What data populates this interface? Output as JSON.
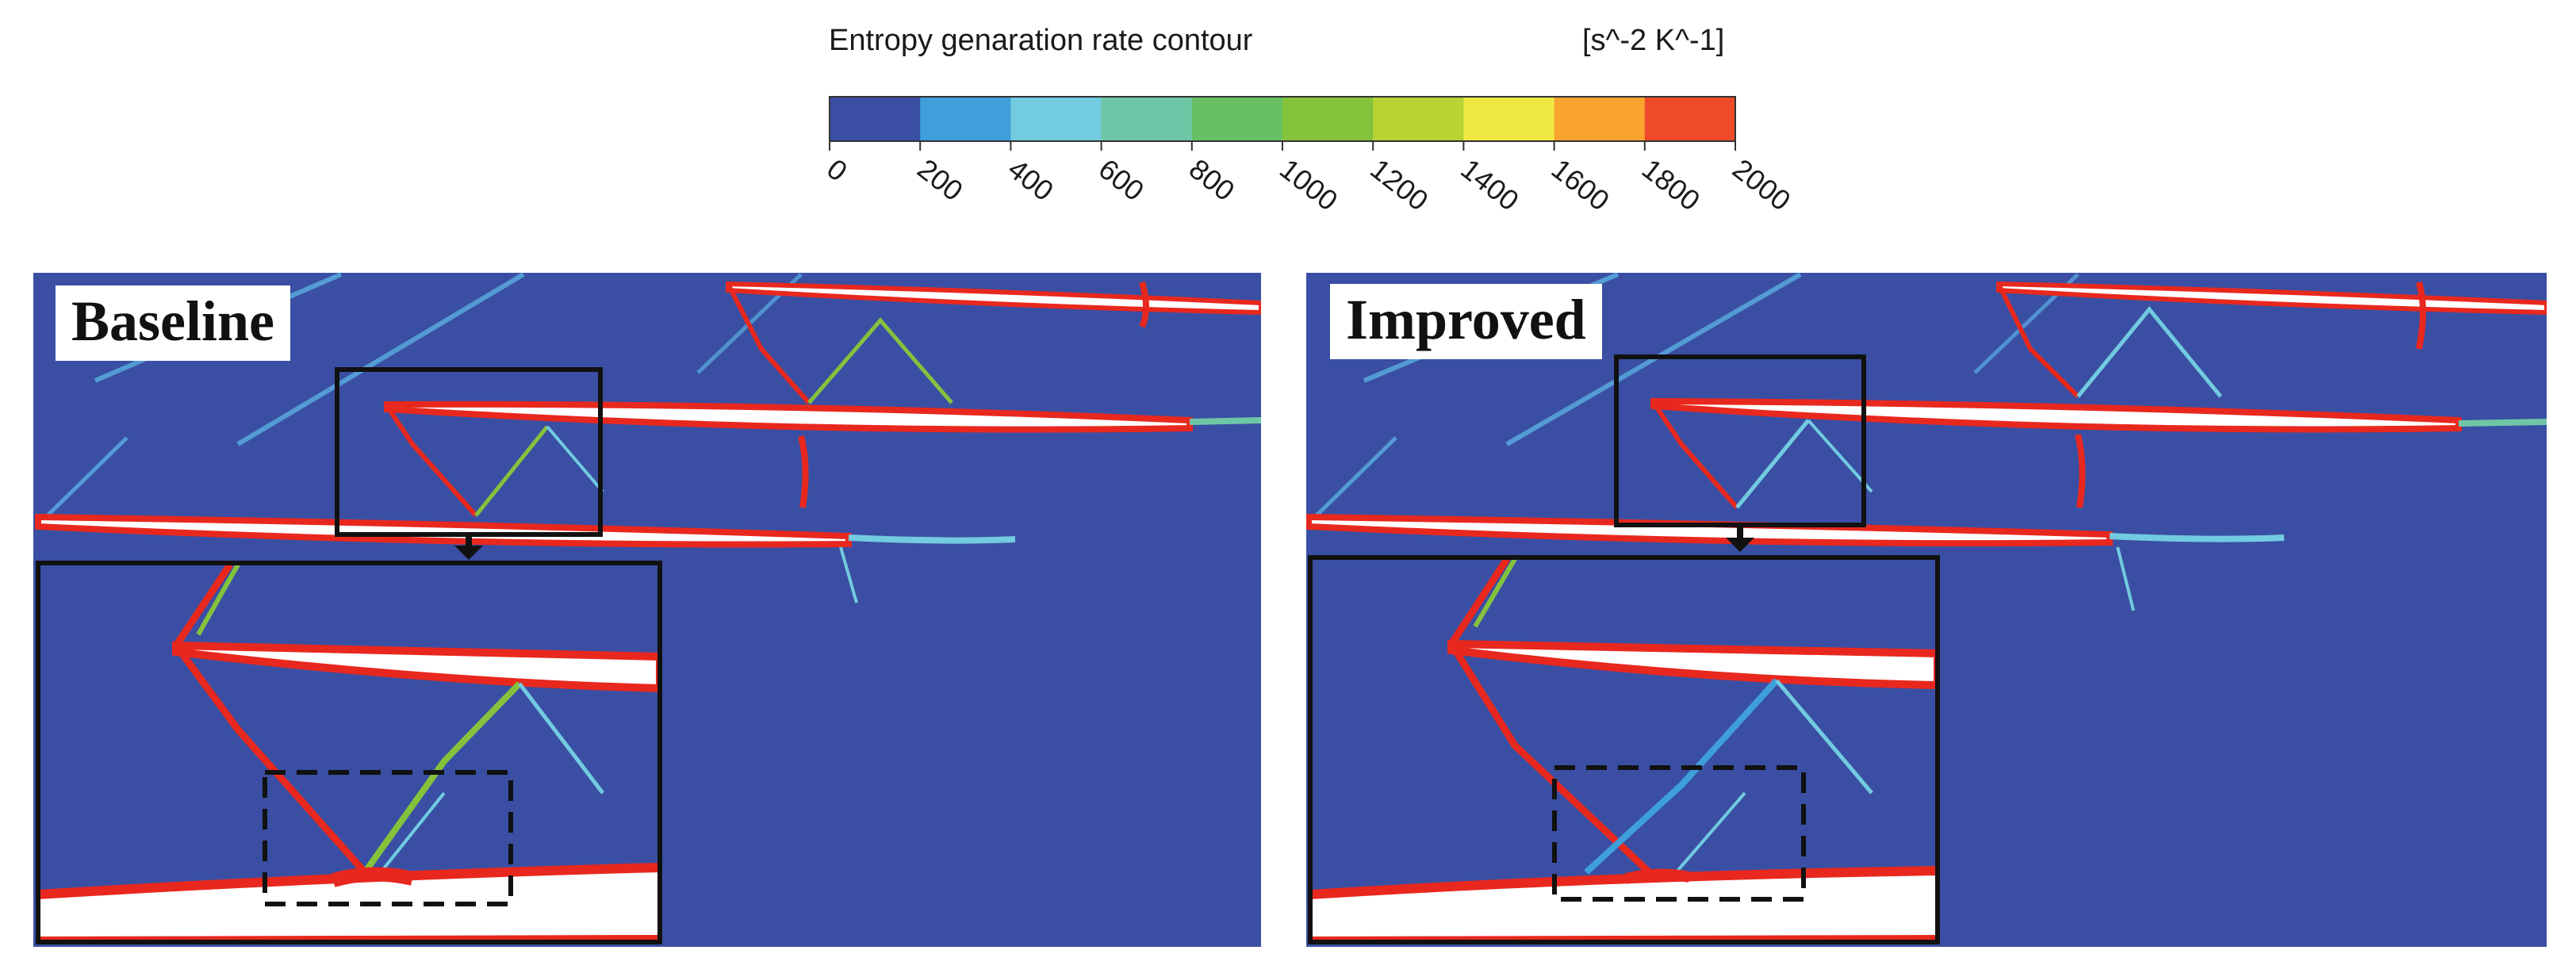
{
  "colorbar": {
    "title": "Entropy genaration rate contour",
    "unit": "[s^-2 K^-1]",
    "ticks": [
      "0",
      "200",
      "400",
      "600",
      "800",
      "1000",
      "1200",
      "1400",
      "1600",
      "1800",
      "2000"
    ],
    "colors": [
      "#3a4fa3",
      "#3e9fdb",
      "#72cbe0",
      "#6fc6a6",
      "#67c063",
      "#83c33c",
      "#b7d334",
      "#f0e842",
      "#f8a42e",
      "#ef4a2a"
    ]
  },
  "panels": [
    {
      "label": "Baseline"
    },
    {
      "label": "Improved"
    }
  ],
  "colors": {
    "background_field": "#3a4fa3",
    "shock_red": "#e8281e",
    "blade_white": "#ffffff"
  }
}
